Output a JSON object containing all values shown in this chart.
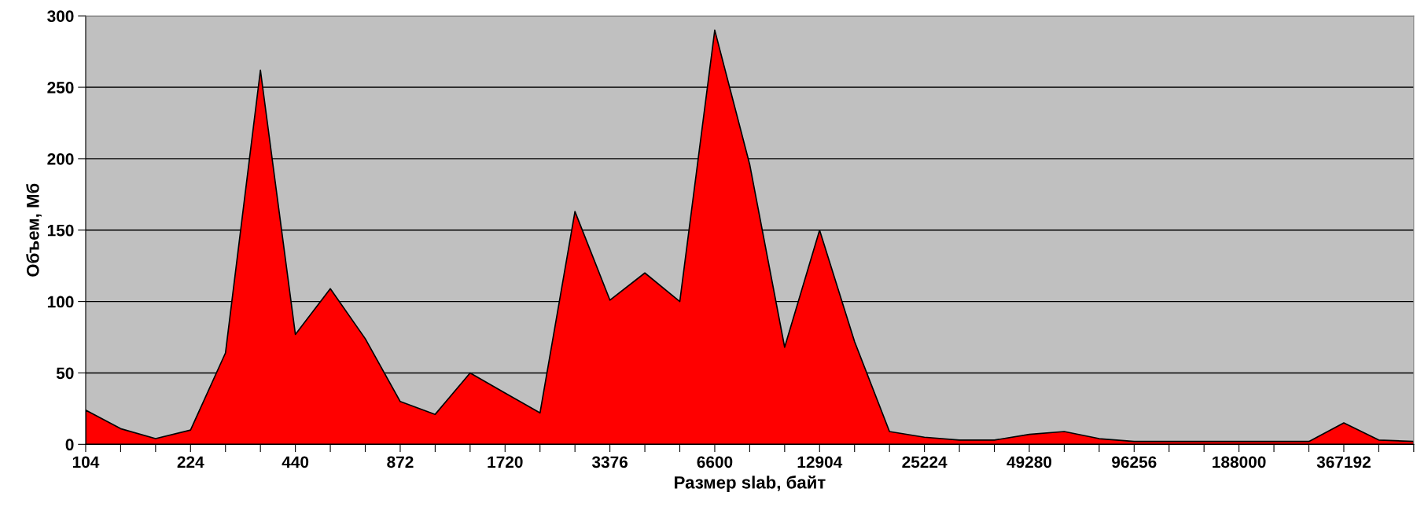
{
  "chart_data": {
    "type": "area",
    "xlabel": "Размер slab, байт",
    "ylabel": "Объем, Мб",
    "categories": [
      "104",
      null,
      null,
      "224",
      null,
      null,
      "440",
      null,
      null,
      "872",
      null,
      null,
      "1720",
      null,
      null,
      "3376",
      null,
      null,
      "6600",
      null,
      null,
      "12904",
      null,
      null,
      "25224",
      null,
      null,
      "49280",
      null,
      null,
      "96256",
      null,
      null,
      "188000",
      null,
      null,
      "367192",
      null,
      null
    ],
    "series": [
      {
        "color": "#ff0000",
        "values": [
          24,
          11,
          4,
          10,
          64,
          262,
          77,
          109,
          74,
          30,
          21,
          50,
          36,
          22,
          163,
          101,
          120,
          100,
          290,
          196,
          68,
          150,
          72,
          9,
          5,
          3,
          3,
          7,
          9,
          4,
          2,
          2,
          2,
          2,
          2,
          2,
          15,
          3,
          2
        ]
      }
    ],
    "ylim": [
      0,
      300
    ],
    "yticks": [
      0,
      50,
      100,
      150,
      200,
      250,
      300
    ],
    "grid": "y",
    "legend": false
  }
}
